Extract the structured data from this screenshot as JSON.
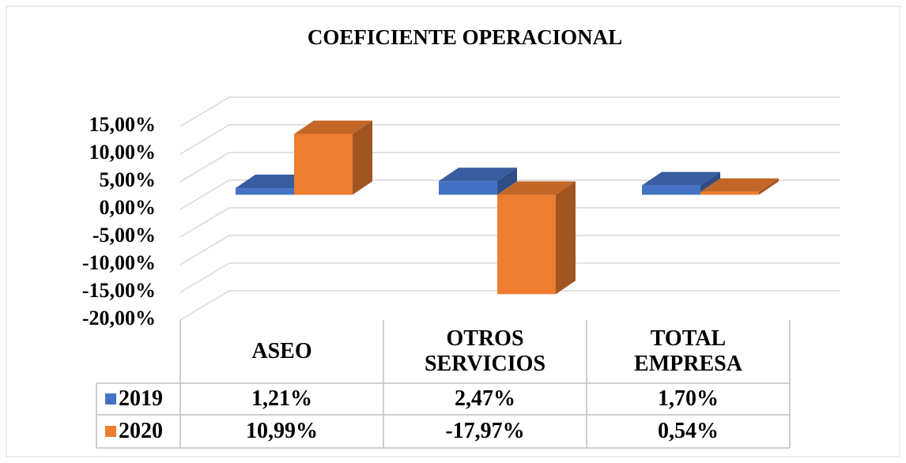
{
  "chart_data": {
    "type": "bar3d",
    "title": "COEFICIENTE OPERACIONAL",
    "categories": [
      "ASEO",
      "OTROS SERVICIOS",
      "TOTAL EMPRESA"
    ],
    "series": [
      {
        "name": "2019",
        "color": "#4472c4",
        "values": [
          1.21,
          2.47,
          1.7
        ],
        "value_labels": [
          "1,21%",
          "2,47%",
          "1,70%"
        ]
      },
      {
        "name": "2020",
        "color": "#ed7d31",
        "values": [
          10.99,
          -17.97,
          0.54
        ],
        "value_labels": [
          "10,99%",
          "-17,97%",
          "0,54%"
        ]
      }
    ],
    "ylim": [
      -20,
      15
    ],
    "yticks": [
      {
        "value": 15,
        "label": "15,00%"
      },
      {
        "value": 10,
        "label": "10,00%"
      },
      {
        "value": 5,
        "label": "5,00%"
      },
      {
        "value": 0,
        "label": "0,00%"
      },
      {
        "value": -5,
        "label": "-5,00%"
      },
      {
        "value": -10,
        "label": "-10,00%"
      },
      {
        "value": -15,
        "label": "-15,00%"
      },
      {
        "value": -20,
        "label": "-20,00%"
      }
    ],
    "grid": true
  }
}
